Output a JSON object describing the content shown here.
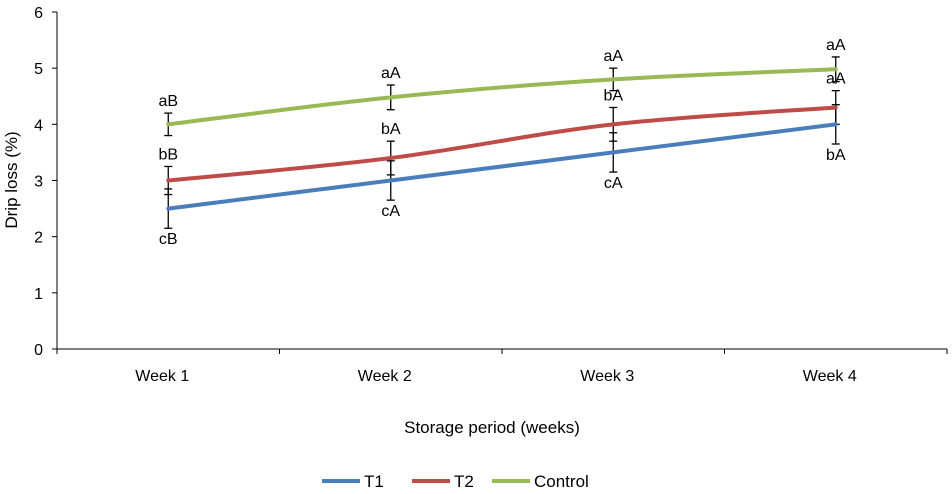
{
  "chart_data": {
    "type": "line",
    "title": "",
    "xlabel": "Storage period (weeks)",
    "ylabel": "Drip loss (%)",
    "categories": [
      "Week 1",
      "Week 2",
      "Week 3",
      "Week 4"
    ],
    "ylim": [
      0,
      6
    ],
    "yticks": [
      "0",
      "1",
      "2",
      "3",
      "4",
      "5",
      "6"
    ],
    "grid": false,
    "legend_position": "bottom",
    "series": [
      {
        "name": "T1",
        "color": "#4a7ebb",
        "values": [
          2.5,
          3.0,
          3.5,
          4.0
        ],
        "errors": [
          0.35,
          0.35,
          0.35,
          0.35
        ],
        "letters": [
          "cB",
          "cA",
          "cA",
          "bA"
        ]
      },
      {
        "name": "T2",
        "color": "#be4b48",
        "values": [
          3.0,
          3.4,
          4.0,
          4.3
        ],
        "errors": [
          0.25,
          0.3,
          0.3,
          0.3
        ],
        "letters": [
          "bB",
          "bA",
          "bA",
          "aA"
        ]
      },
      {
        "name": "Control",
        "color": "#98b954",
        "values": [
          4.0,
          4.48,
          4.8,
          4.98
        ],
        "errors": [
          0.2,
          0.22,
          0.2,
          0.22
        ],
        "letters": [
          "aB",
          "aA",
          "aA",
          "aA"
        ]
      }
    ]
  }
}
